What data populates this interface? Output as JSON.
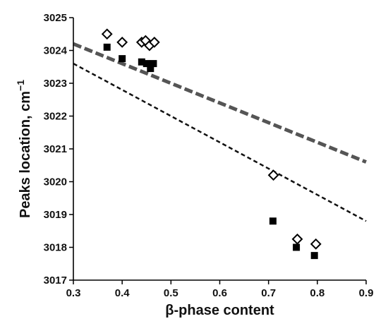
{
  "chart_data": {
    "type": "scatter",
    "xlabel": "β-phase content",
    "ylabel": "Peaks location, cm",
    "ylabel_superscript": "−1",
    "xlim": [
      0.3,
      0.9
    ],
    "ylim": [
      3017,
      3025
    ],
    "xticks": [
      "0.3",
      "0.4",
      "0.5",
      "0.6",
      "0.7",
      "0.8",
      "0.9"
    ],
    "yticks": [
      "3017",
      "3018",
      "3019",
      "3020",
      "3021",
      "3022",
      "3023",
      "3024",
      "3025"
    ],
    "grid": false,
    "series": [
      {
        "marker": "open-diamond",
        "color": "#000000",
        "points": [
          {
            "x": 0.369,
            "y": 3024.5
          },
          {
            "x": 0.4,
            "y": 3024.25
          },
          {
            "x": 0.44,
            "y": 3024.25
          },
          {
            "x": 0.448,
            "y": 3024.3
          },
          {
            "x": 0.456,
            "y": 3024.15
          },
          {
            "x": 0.466,
            "y": 3024.25
          },
          {
            "x": 0.71,
            "y": 3020.2
          },
          {
            "x": 0.759,
            "y": 3018.25
          },
          {
            "x": 0.797,
            "y": 3018.1
          }
        ]
      },
      {
        "marker": "filled-square",
        "color": "#000000",
        "points": [
          {
            "x": 0.369,
            "y": 3024.1
          },
          {
            "x": 0.4,
            "y": 3023.75
          },
          {
            "x": 0.44,
            "y": 3023.65
          },
          {
            "x": 0.45,
            "y": 3023.6
          },
          {
            "x": 0.458,
            "y": 3023.45
          },
          {
            "x": 0.464,
            "y": 3023.6
          },
          {
            "x": 0.709,
            "y": 3018.8
          },
          {
            "x": 0.757,
            "y": 3018.0
          },
          {
            "x": 0.794,
            "y": 3017.75
          }
        ]
      }
    ],
    "trendlines": [
      {
        "style": "thick-dashed",
        "color": "#555555",
        "x": [
          0.3,
          0.9
        ],
        "y": [
          3024.2,
          3020.6
        ]
      },
      {
        "style": "thin-dashed",
        "color": "#111111",
        "x": [
          0.3,
          0.9
        ],
        "y": [
          3023.6,
          3018.8
        ]
      }
    ]
  }
}
